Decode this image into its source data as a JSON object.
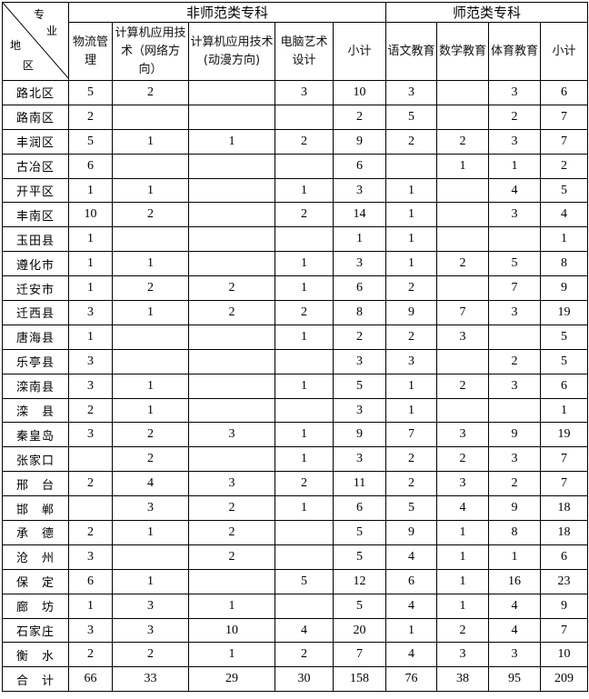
{
  "corner": {
    "top": "专",
    "top2": "业",
    "left": "地",
    "left2": "区"
  },
  "groups": [
    "非师范类专科",
    "师范类专科"
  ],
  "columns": [
    "物流管理",
    "计算机应用技术（网络方向）",
    "计算机应用技术(动漫方向)",
    "电脑艺术设计",
    "小计",
    "语文教育",
    "数学教育",
    "体育教育",
    "小计"
  ],
  "rows": [
    {
      "region": "路北区",
      "values": [
        "5",
        "2",
        "",
        "3",
        "10",
        "3",
        "",
        "3",
        "6"
      ]
    },
    {
      "region": "路南区",
      "values": [
        "2",
        "",
        "",
        "",
        "2",
        "5",
        "",
        "2",
        "7"
      ]
    },
    {
      "region": "丰润区",
      "values": [
        "5",
        "1",
        "1",
        "2",
        "9",
        "2",
        "2",
        "3",
        "7"
      ]
    },
    {
      "region": "古冶区",
      "values": [
        "6",
        "",
        "",
        "",
        "6",
        "",
        "1",
        "1",
        "2"
      ]
    },
    {
      "region": "开平区",
      "values": [
        "1",
        "1",
        "",
        "1",
        "3",
        "1",
        "",
        "4",
        "5"
      ]
    },
    {
      "region": "丰南区",
      "values": [
        "10",
        "2",
        "",
        "2",
        "14",
        "1",
        "",
        "3",
        "4"
      ]
    },
    {
      "region": "玉田县",
      "values": [
        "1",
        "",
        "",
        "",
        "1",
        "1",
        "",
        "",
        "1"
      ]
    },
    {
      "region": "遵化市",
      "values": [
        "1",
        "1",
        "",
        "1",
        "3",
        "1",
        "2",
        "5",
        "8"
      ]
    },
    {
      "region": "迁安市",
      "values": [
        "1",
        "2",
        "2",
        "1",
        "6",
        "2",
        "",
        "7",
        "9"
      ]
    },
    {
      "region": "迁西县",
      "values": [
        "3",
        "1",
        "2",
        "2",
        "8",
        "9",
        "7",
        "3",
        "19"
      ]
    },
    {
      "region": "唐海县",
      "values": [
        "1",
        "",
        "",
        "1",
        "2",
        "2",
        "3",
        "",
        "5"
      ]
    },
    {
      "region": "乐亭县",
      "values": [
        "3",
        "",
        "",
        "",
        "3",
        "3",
        "",
        "2",
        "5"
      ]
    },
    {
      "region": "滦南县",
      "values": [
        "3",
        "1",
        "",
        "1",
        "5",
        "1",
        "2",
        "3",
        "6"
      ]
    },
    {
      "region": "滦　县",
      "values": [
        "2",
        "1",
        "",
        "",
        "3",
        "1",
        "",
        "",
        "1"
      ]
    },
    {
      "region": "秦皇岛",
      "values": [
        "3",
        "2",
        "3",
        "1",
        "9",
        "7",
        "3",
        "9",
        "19"
      ]
    },
    {
      "region": "张家口",
      "values": [
        "",
        "2",
        "",
        "1",
        "3",
        "2",
        "2",
        "3",
        "7"
      ]
    },
    {
      "region": "邢　台",
      "values": [
        "2",
        "4",
        "3",
        "2",
        "11",
        "2",
        "3",
        "2",
        "7"
      ]
    },
    {
      "region": "邯　郸",
      "values": [
        "",
        "3",
        "2",
        "1",
        "6",
        "5",
        "4",
        "9",
        "18"
      ]
    },
    {
      "region": "承　德",
      "values": [
        "2",
        "1",
        "2",
        "",
        "5",
        "9",
        "1",
        "8",
        "18"
      ]
    },
    {
      "region": "沧　州",
      "values": [
        "3",
        "",
        "2",
        "",
        "5",
        "4",
        "1",
        "1",
        "6"
      ]
    },
    {
      "region": "保　定",
      "values": [
        "6",
        "1",
        "",
        "5",
        "12",
        "6",
        "1",
        "16",
        "23"
      ]
    },
    {
      "region": "廊　坊",
      "values": [
        "1",
        "3",
        "1",
        "",
        "5",
        "4",
        "1",
        "4",
        "9"
      ]
    },
    {
      "region": "石家庄",
      "values": [
        "3",
        "3",
        "10",
        "4",
        "20",
        "1",
        "2",
        "4",
        "7"
      ]
    },
    {
      "region": "衡　水",
      "values": [
        "2",
        "2",
        "1",
        "2",
        "7",
        "4",
        "3",
        "3",
        "10"
      ]
    },
    {
      "region": "合　计",
      "values": [
        "66",
        "33",
        "29",
        "30",
        "158",
        "76",
        "38",
        "95",
        "209"
      ]
    }
  ]
}
